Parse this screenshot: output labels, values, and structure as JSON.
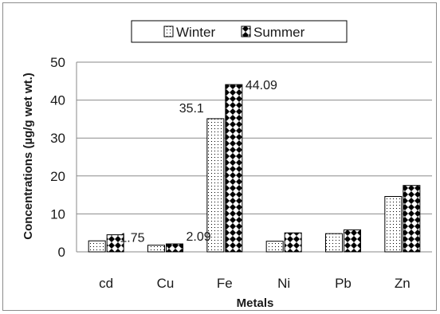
{
  "chart_data": {
    "type": "bar",
    "title": "",
    "xlabel": "Metals",
    "ylabel": "Concentrations (µg/g wet wt.)",
    "categories": [
      "cd",
      "Cu",
      "Fe",
      "Ni",
      "Pb",
      "Zn"
    ],
    "ylim": [
      0,
      50
    ],
    "yticks": [
      0,
      10,
      20,
      30,
      40,
      50
    ],
    "grid": true,
    "legend_position": "top",
    "series": [
      {
        "name": "Winter",
        "pattern": "dots",
        "values": [
          2.9,
          1.75,
          35.1,
          2.8,
          4.8,
          14.6
        ]
      },
      {
        "name": "Summer",
        "pattern": "diamond-checker",
        "values": [
          4.5,
          2.09,
          44.09,
          5.0,
          5.8,
          17.5
        ]
      }
    ],
    "data_labels": [
      {
        "series": 0,
        "category": "Cu",
        "text": "1.75"
      },
      {
        "series": 1,
        "category": "Cu",
        "text": "2.09"
      },
      {
        "series": 0,
        "category": "Fe",
        "text": "35.1"
      },
      {
        "series": 1,
        "category": "Fe",
        "text": "44.09"
      }
    ]
  }
}
